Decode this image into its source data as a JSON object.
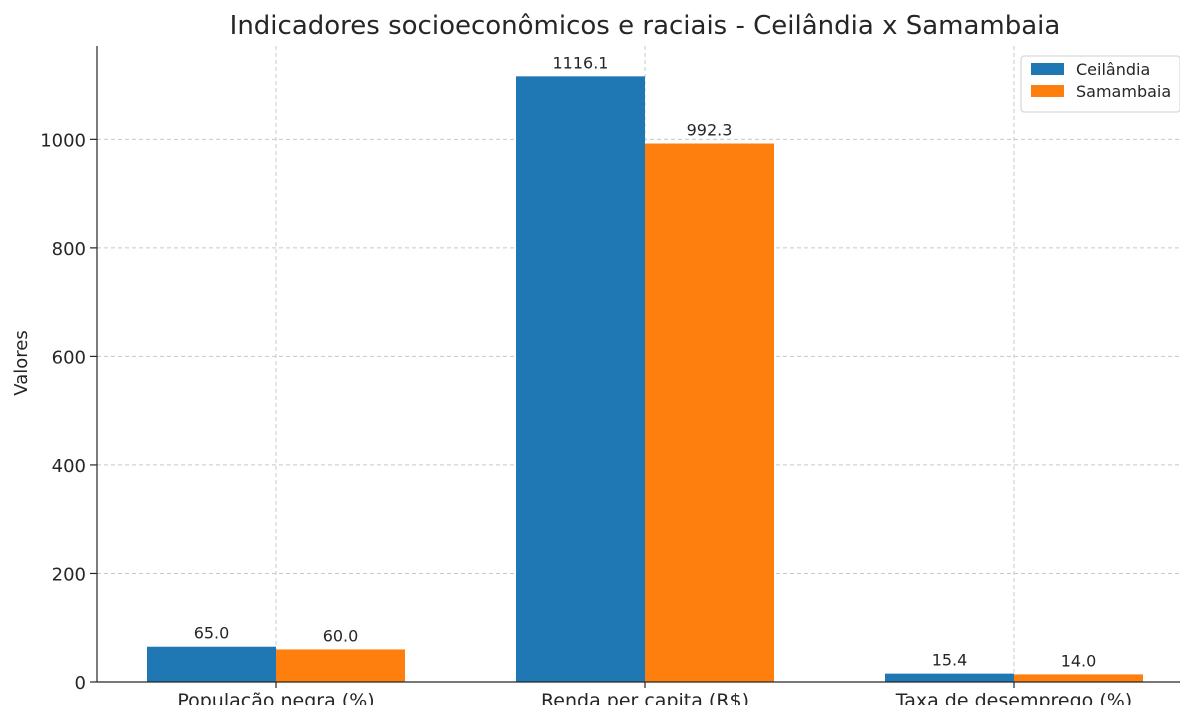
{
  "chart_data": {
    "type": "bar",
    "title": "Indicadores socioeconômicos e raciais - Ceilândia x Samambaia",
    "xlabel": "",
    "ylabel": "Valores",
    "categories": [
      "População negra (%)",
      "Renda per capita (R$)",
      "Taxa de desemprego (%)"
    ],
    "series": [
      {
        "name": "Ceilândia",
        "color": "#1f77b4",
        "values": [
          65.0,
          1116.1,
          15.4
        ]
      },
      {
        "name": "Samambaia",
        "color": "#ff7f0e",
        "values": [
          60.0,
          992.3,
          14.0
        ]
      }
    ],
    "ylim": [
      0,
      1172
    ],
    "yticks": [
      0,
      200,
      400,
      600,
      800,
      1000
    ],
    "grid": true,
    "legend_position": "top-right"
  }
}
